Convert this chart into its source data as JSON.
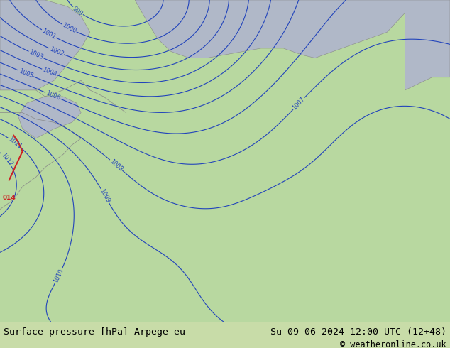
{
  "title_left": "Surface pressure [hPa] Arpege-eu",
  "title_right": "Su 09-06-2024 12:00 UTC (12+48)",
  "copyright": "© weatheronline.co.uk",
  "sea_color": "#b0b8c8",
  "land_color": "#b8d8a0",
  "footer_bg": "#c8dca8",
  "footer_text_color": "#000000",
  "contour_color": "#2244bb",
  "label_color": "#2244bb",
  "black_contour_color": "#000000",
  "red_line_color": "#cc2222",
  "red_label_color": "#cc2222",
  "border_color": "#888888",
  "fig_width": 6.34,
  "fig_height": 4.9,
  "dpi": 100,
  "footer_fontsize": 9.5,
  "copyright_fontsize": 8.5
}
